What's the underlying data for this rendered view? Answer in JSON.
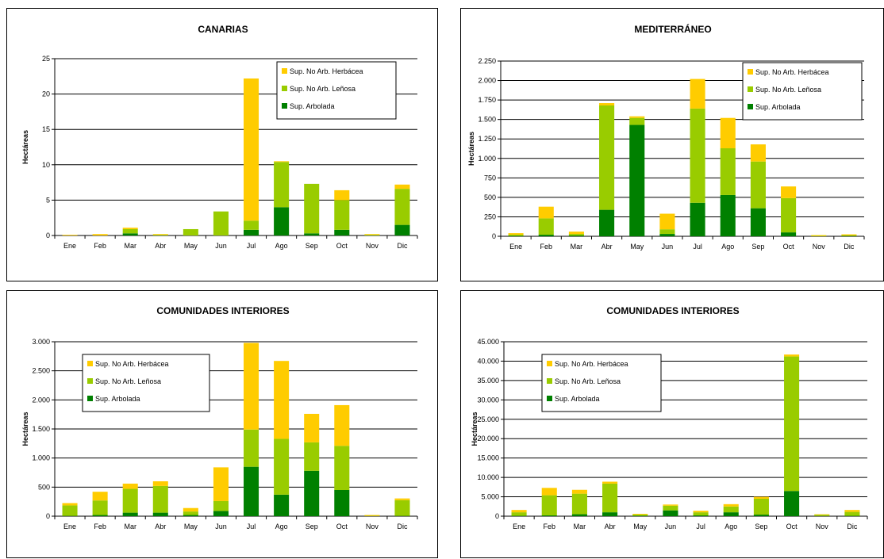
{
  "colors": {
    "herbacea": "#FFCC00",
    "lenosa": "#99CC00",
    "arbolada": "#008000"
  },
  "chart_data": [
    {
      "type": "bar",
      "stacked": true,
      "title": "CANARIAS",
      "ylabel": "Hectáreas",
      "categories": [
        "Ene",
        "Feb",
        "Mar",
        "Abr",
        "May",
        "Jun",
        "Jul",
        "Ago",
        "Sep",
        "Oct",
        "Nov",
        "Dic"
      ],
      "ylim": [
        0,
        25
      ],
      "yticks": [
        0,
        5,
        10,
        15,
        20,
        25
      ],
      "ytick_labels": [
        "0",
        "5",
        "10",
        "15",
        "20",
        "25"
      ],
      "legend_position": "top-right",
      "series": [
        {
          "name": "Sup. Arbolada",
          "values": [
            0,
            0,
            0.3,
            0,
            0,
            0,
            0.8,
            4.0,
            0.3,
            0.8,
            0,
            1.5
          ]
        },
        {
          "name": "Sup. No Arb. Leñosa",
          "values": [
            0,
            0,
            0.6,
            0.1,
            0.9,
            3.4,
            1.3,
            6.4,
            7.0,
            4.2,
            0.1,
            5.1
          ]
        },
        {
          "name": "Sup. No Arb. Herbácea",
          "values": [
            0.1,
            0.2,
            0.2,
            0.1,
            0,
            0,
            20.1,
            0.1,
            0,
            1.4,
            0.1,
            0.6
          ]
        }
      ]
    },
    {
      "type": "bar",
      "stacked": true,
      "title": "MEDITERRÁNEO",
      "ylabel": "Hectáreas",
      "categories": [
        "Ene",
        "Feb",
        "Mar",
        "Abr",
        "May",
        "Jun",
        "Jul",
        "Ago",
        "Sep",
        "Oct",
        "Nov",
        "Dic"
      ],
      "ylim": [
        0,
        2250
      ],
      "yticks": [
        0,
        250,
        500,
        750,
        1000,
        1250,
        1500,
        1750,
        2000,
        2250
      ],
      "ytick_labels": [
        "0",
        "250",
        "500",
        "750",
        "1.000",
        "1.250",
        "1.500",
        "1.750",
        "2.000",
        "2.250"
      ],
      "legend_position": "top-right",
      "series": [
        {
          "name": "Sup. Arbolada",
          "values": [
            5,
            20,
            10,
            340,
            1430,
            30,
            430,
            530,
            360,
            50,
            0,
            5
          ]
        },
        {
          "name": "Sup. No Arb. Leñosa",
          "values": [
            15,
            210,
            20,
            1340,
            90,
            60,
            1210,
            600,
            600,
            440,
            5,
            5
          ]
        },
        {
          "name": "Sup. No Arb. Herbácea",
          "values": [
            20,
            150,
            30,
            30,
            20,
            200,
            380,
            390,
            220,
            150,
            10,
            15
          ]
        }
      ]
    },
    {
      "type": "bar",
      "stacked": true,
      "title": "COMUNIDADES INTERIORES",
      "ylabel": "Hectáreas",
      "categories": [
        "Ene",
        "Feb",
        "Mar",
        "Abr",
        "May",
        "Jun",
        "Jul",
        "Ago",
        "Sep",
        "Oct",
        "Nov",
        "Dic"
      ],
      "ylim": [
        0,
        3000
      ],
      "yticks": [
        0,
        500,
        1000,
        1500,
        2000,
        2500,
        3000
      ],
      "ytick_labels": [
        "0",
        "500",
        "1.000",
        "1.500",
        "2.000",
        "2.500",
        "3.000"
      ],
      "legend_position": "top-left",
      "series": [
        {
          "name": "Sup. Arbolada",
          "values": [
            5,
            20,
            60,
            60,
            20,
            90,
            850,
            370,
            780,
            450,
            0,
            5
          ]
        },
        {
          "name": "Sup. No Arb. Leñosa",
          "values": [
            180,
            250,
            410,
            460,
            60,
            170,
            640,
            960,
            490,
            760,
            5,
            270
          ]
        },
        {
          "name": "Sup. No Arb. Herbácea",
          "values": [
            40,
            150,
            90,
            80,
            60,
            580,
            1490,
            1340,
            490,
            700,
            15,
            30
          ]
        }
      ]
    },
    {
      "type": "bar",
      "stacked": true,
      "title": "COMUNIDADES INTERIORES",
      "ylabel": "Hectáreas",
      "categories": [
        "Ene",
        "Feb",
        "Mar",
        "Abr",
        "May",
        "Jun",
        "Jul",
        "Ago",
        "Sep",
        "Oct",
        "Nov",
        "Dic"
      ],
      "ylim": [
        0,
        45000
      ],
      "yticks": [
        0,
        5000,
        10000,
        15000,
        20000,
        25000,
        30000,
        35000,
        40000,
        45000
      ],
      "ytick_labels": [
        "0",
        "5.000",
        "10.000",
        "15.000",
        "20.000",
        "25.000",
        "30.000",
        "35.000",
        "40.000",
        "45.000"
      ],
      "legend_position": "top-left",
      "series": [
        {
          "name": "Sup. Arbolada",
          "values": [
            100,
            200,
            500,
            1000,
            100,
            1500,
            200,
            1000,
            400,
            6500,
            50,
            100
          ]
        },
        {
          "name": "Sup. No Arb. Leñosa",
          "values": [
            900,
            5200,
            5300,
            7400,
            300,
            1200,
            800,
            1500,
            4100,
            34700,
            300,
            1000
          ]
        },
        {
          "name": "Sup. No Arb. Herbácea",
          "values": [
            600,
            1900,
            1000,
            500,
            200,
            300,
            400,
            600,
            500,
            500,
            150,
            500
          ]
        }
      ]
    }
  ]
}
